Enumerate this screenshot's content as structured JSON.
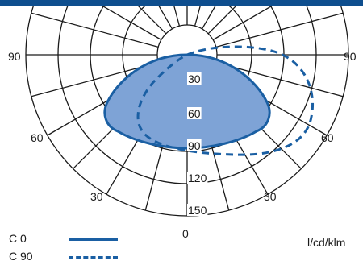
{
  "chart_data": {
    "type": "polar-luminous-intensity",
    "unit": "l/cd/klm",
    "angle_labels": {
      "left": [
        "90",
        "60",
        "30"
      ],
      "right": [
        "90",
        "60",
        "30"
      ],
      "bottom": "0"
    },
    "radial_ticks": [
      "30",
      "60",
      "90",
      "120",
      "150"
    ],
    "legend": [
      {
        "name": "C 0",
        "style": "solid"
      },
      {
        "name": "C 90",
        "style": "dashed"
      }
    ],
    "colors": {
      "header": "#0e4e8e",
      "line": "#1a5fa3",
      "fill": "#7ea3d6",
      "grid": "#1a1a1a"
    }
  }
}
